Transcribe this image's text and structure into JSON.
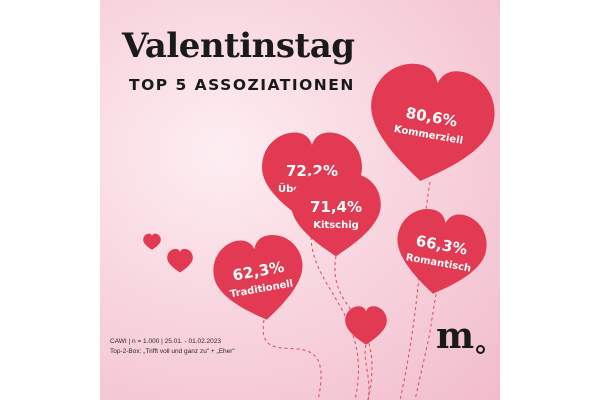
{
  "colors": {
    "heart": "#e23a52",
    "background": "#f8d6df",
    "string": "#e3465a"
  },
  "header": {
    "title": "Valentinstag",
    "subtitle": "TOP 5 ASSOZIATIONEN"
  },
  "chart_data": {
    "type": "bar",
    "unit": "%",
    "title": "Valentinstag",
    "subtitle": "TOP 5 ASSOZIATIONEN",
    "categories": [
      "Kommerziell",
      "Übertrieben",
      "Kitschig",
      "Romantisch",
      "Traditionell"
    ],
    "values": [
      80.6,
      72.2,
      71.4,
      66.3,
      62.3
    ],
    "value_labels": [
      "80,6%",
      "72,2%",
      "71,4%",
      "66,3%",
      "62,3%"
    ]
  },
  "footnote": {
    "line1": "CAWI | n = 1.000 | 25.01. - 01.02.2023",
    "line2": "Top-2-Box: „Trifft voll und ganz zu\" + „Eher\""
  },
  "logo": {
    "text": "m"
  }
}
